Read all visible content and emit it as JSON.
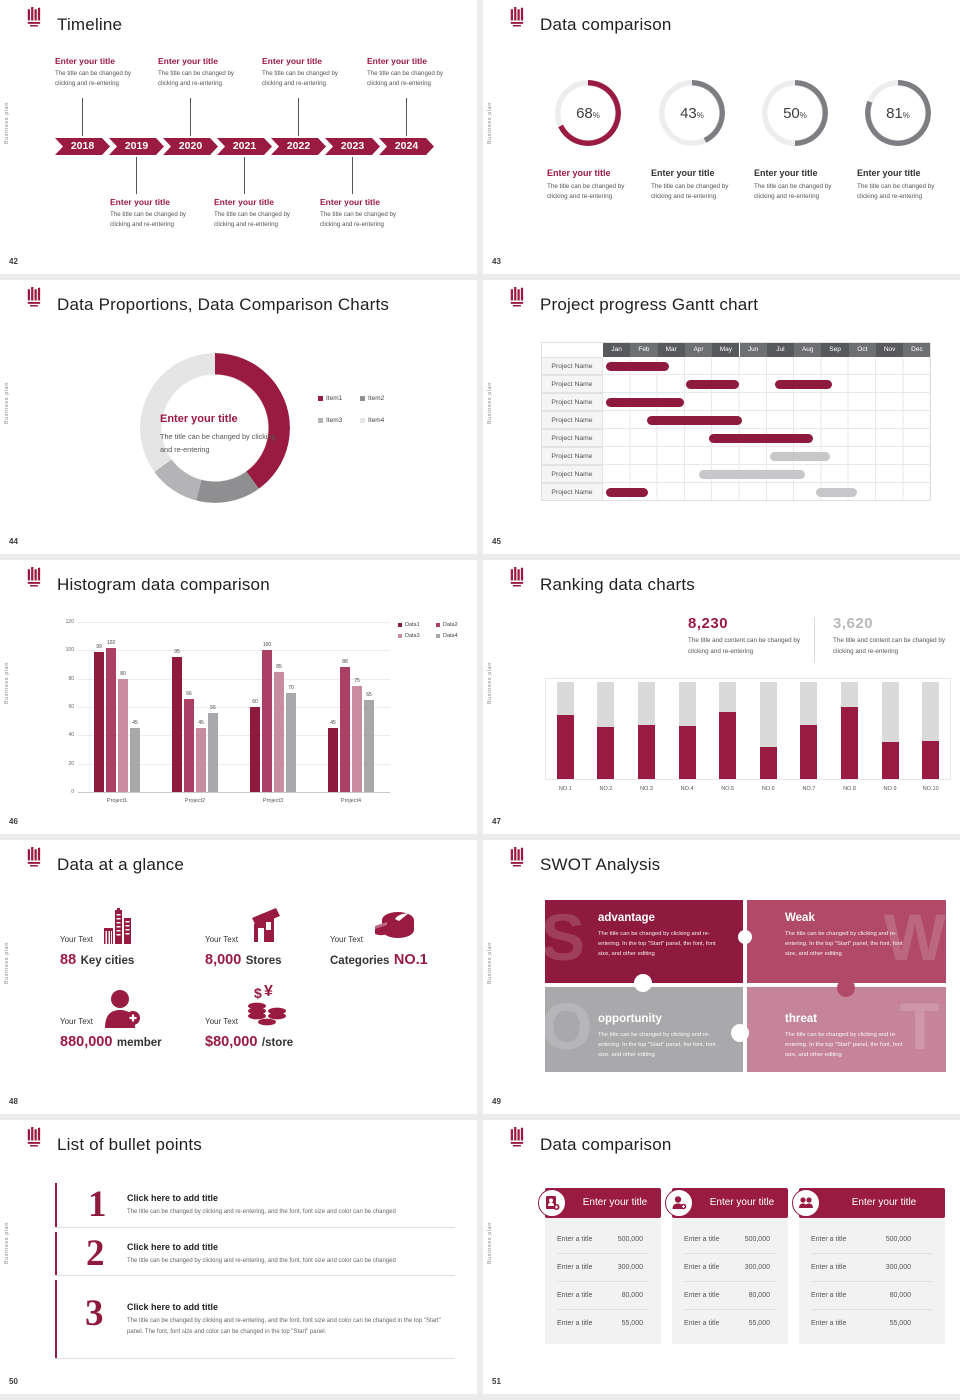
{
  "common": {
    "side_text": "Business plan",
    "logo": "university-emblem-icon"
  },
  "colors": {
    "primary": "#9a1b42",
    "primary_dark": "#8e1a3e",
    "gray_ring": "#7d7e81",
    "gantt_gray": "#c7c7c9",
    "track": "#dadadb"
  },
  "timeline": {
    "page_number": "42",
    "title": "Timeline",
    "years": [
      "2018",
      "2019",
      "2020",
      "2021",
      "2022",
      "2023",
      "2024"
    ],
    "entry_title": "Enter your title",
    "entry_desc": "The title can be changed by clicking and re-entering",
    "top_indices": [
      0,
      2,
      4,
      6
    ],
    "bottom_indices": [
      1,
      3,
      5
    ]
  },
  "rings": {
    "page_number": "43",
    "title": "Data comparison",
    "items": [
      {
        "title": "Enter your title",
        "desc": "The title can be changed by clicking and re-entering",
        "accent": true
      },
      {
        "title": "Enter your title",
        "desc": "The title can be changed by clicking and re-entering",
        "accent": false
      },
      {
        "title": "Enter your title",
        "desc": "The title can be changed by clicking and re-entering",
        "accent": false
      },
      {
        "title": "Enter your title",
        "desc": "The title can be changed by clicking and re-entering",
        "accent": false
      }
    ]
  },
  "donut": {
    "page_number": "44",
    "title": "Data Proportions, Data Comparison Charts",
    "center_title": "Enter your title",
    "center_desc": "The title can be changed by clicking and re-entering"
  },
  "gantt": {
    "page_number": "45",
    "title": "Project progress Gantt chart"
  },
  "histogram": {
    "page_number": "46",
    "title": "Histogram data comparison"
  },
  "ranking": {
    "page_number": "47",
    "title": "Ranking data charts",
    "stat1": {
      "value": "8,230",
      "desc": "The title and content can be changed by clicking and re-entering"
    },
    "stat2": {
      "value": "3,620",
      "desc": "The title and content can be changed by clicking and re-entering"
    }
  },
  "glance": {
    "page_number": "48",
    "title": "Data at a glance",
    "stats": [
      {
        "label": "Your Text",
        "a": "88",
        "b": "Key cities",
        "icon": "city-buildings-icon"
      },
      {
        "label": "Your Text",
        "a": "8,000",
        "b": "Stores",
        "icon": "store-icon"
      },
      {
        "label": "Your Text",
        "a": "Categories",
        "b": "NO.1",
        "icon": "pie-categories-icon"
      },
      {
        "label": "Your Text",
        "a": "880,000",
        "b": "member",
        "icon": "member-add-icon"
      },
      {
        "label": "Your Text",
        "a": "$80,000",
        "b": "/store",
        "icon": "coins-icon"
      }
    ]
  },
  "swot": {
    "page_number": "49",
    "title": "SWOT Analysis",
    "quads": [
      {
        "letter": "S",
        "heading": "advantage",
        "body": "The title can be changed by clicking and re-entering. In the top \"Start\" panel, the font, font size, and other editing",
        "color": "#8e1a3f"
      },
      {
        "letter": "W",
        "heading": "Weak",
        "body": "The title can be changed by clicking and re-entering. In the top \"Start\" panel, the font, font size, and other editing",
        "color": "#b04a68"
      },
      {
        "letter": "O",
        "heading": "opportunity",
        "body": "The title can be changed by clicking and re-entering. In the top \"Start\" panel, the font, font size, and other editing",
        "color": "#a9a9ab"
      },
      {
        "letter": "T",
        "heading": "threat",
        "body": "The title can be changed by clicking and re-entering. In the top \"Start\" panel, the font, font size, and other editing",
        "color": "#c6849b"
      }
    ]
  },
  "bullets": {
    "page_number": "50",
    "title": "List of bullet points",
    "items": [
      {
        "num": "1",
        "title": "Click here to add title",
        "desc": "The title can be changed by clicking and re-entering, and the font, font size and color can be changed"
      },
      {
        "num": "2",
        "title": "Click here to add title",
        "desc": "The title can be changed by clicking and re-entering, and the font, font size and color can be changed"
      },
      {
        "num": "3",
        "title": "Click here to add title",
        "desc": "The title can be changed by clicking and re-entering, and the font, font size and color can be changed in the top \"Start\" panel. The font, font size and color can be changed in the top \"Start\" panel."
      }
    ]
  },
  "tables": {
    "page_number": "51",
    "title": "Data comparison",
    "cards": [
      {
        "header": "Enter your title",
        "icon": "id-card-icon",
        "rows": [
          {
            "label": "Enter a title",
            "value": "500,000"
          },
          {
            "label": "Enter a title",
            "value": "300,000"
          },
          {
            "label": "Enter a title",
            "value": "80,000"
          },
          {
            "label": "Enter a title",
            "value": "55,000"
          }
        ]
      },
      {
        "header": "Enter your title",
        "icon": "person-add-icon",
        "rows": [
          {
            "label": "Enter a title",
            "value": "500,000"
          },
          {
            "label": "Enter a title",
            "value": "300,000"
          },
          {
            "label": "Enter a title",
            "value": "80,000"
          },
          {
            "label": "Enter a title",
            "value": "55,000"
          }
        ]
      },
      {
        "header": "Enter your title",
        "icon": "people-group-icon",
        "rows": [
          {
            "label": "Enter a title",
            "value": "500,000"
          },
          {
            "label": "Enter a title",
            "value": "300,000"
          },
          {
            "label": "Enter a title",
            "value": "80,000"
          },
          {
            "label": "Enter a title",
            "value": "55,000"
          }
        ]
      }
    ]
  },
  "chart_data": [
    {
      "id": "percent-rings",
      "type": "pie",
      "subtype": "progress-rings",
      "values": [
        68,
        43,
        50,
        81
      ],
      "unit": "%",
      "colors": [
        "#9a1b42",
        "#7d7e81",
        "#7d7e81",
        "#7d7e81"
      ],
      "track_color": "#ededef"
    },
    {
      "id": "proportion-donut",
      "type": "pie",
      "labels": [
        "Item1",
        "Item2",
        "Item3",
        "Item4"
      ],
      "values": [
        40,
        14,
        11,
        35
      ],
      "colors": [
        "#9a1b42",
        "#8f8f91",
        "#b4b4b6",
        "#e5e5e6"
      ],
      "legend_position": "right"
    },
    {
      "id": "gantt",
      "type": "table",
      "subtype": "gantt",
      "months": [
        "Jan",
        "Feb",
        "Mar",
        "Apr",
        "May",
        "Jun",
        "Jul",
        "Aug",
        "Sep",
        "Oct",
        "Nov",
        "Dec"
      ],
      "rows": [
        {
          "name": "Project Name",
          "bars": [
            {
              "s": 0.1,
              "e": 2.4,
              "c": "maroon"
            }
          ]
        },
        {
          "name": "Project Name",
          "bars": [
            {
              "s": 3.05,
              "e": 5.0,
              "c": "maroon"
            },
            {
              "s": 6.3,
              "e": 8.4,
              "c": "maroon"
            }
          ]
        },
        {
          "name": "Project Name",
          "bars": [
            {
              "s": 0.1,
              "e": 2.95,
              "c": "maroon"
            }
          ]
        },
        {
          "name": "Project Name",
          "bars": [
            {
              "s": 1.6,
              "e": 5.1,
              "c": "maroon"
            }
          ]
        },
        {
          "name": "Project Name",
          "bars": [
            {
              "s": 3.9,
              "e": 7.7,
              "c": "maroon"
            }
          ]
        },
        {
          "name": "Project Name",
          "bars": [
            {
              "s": 6.1,
              "e": 8.3,
              "c": "gray"
            }
          ]
        },
        {
          "name": "Project Name",
          "bars": [
            {
              "s": 3.5,
              "e": 7.4,
              "c": "gray"
            }
          ]
        },
        {
          "name": "Project Name",
          "bars": [
            {
              "s": 0.1,
              "e": 1.65,
              "c": "maroon"
            },
            {
              "s": 7.8,
              "e": 9.3,
              "c": "gray"
            }
          ]
        }
      ]
    },
    {
      "id": "histogram",
      "type": "bar",
      "categories": [
        "Project1",
        "Project2",
        "Project3",
        "Project4"
      ],
      "series": [
        {
          "name": "Data1",
          "color": "#8e1a3e",
          "values": [
            99,
            95,
            60,
            45
          ]
        },
        {
          "name": "Data2",
          "color": "#ab3f66",
          "values": [
            102,
            66,
            100,
            88
          ]
        },
        {
          "name": "Data3",
          "color": "#c98ba0",
          "values": [
            80,
            45,
            85,
            75
          ]
        },
        {
          "name": "Data4",
          "color": "#a8a8aa",
          "values": [
            45,
            56,
            70,
            65
          ]
        }
      ],
      "ylim": [
        0,
        120
      ],
      "yticks": [
        0,
        20,
        40,
        60,
        80,
        100,
        120
      ],
      "grid": true,
      "legend_position": "top-right"
    },
    {
      "id": "ranking",
      "type": "bar",
      "subtype": "fill-ratio",
      "categories": [
        "NO.1",
        "NO.2",
        "NO.3",
        "NO.4",
        "NO.5",
        "NO.6",
        "NO.7",
        "NO.8",
        "NO.9",
        "NO.10"
      ],
      "values": [
        66,
        54,
        56,
        55,
        69,
        33,
        56,
        74,
        38,
        39
      ],
      "ylim": [
        0,
        100
      ],
      "bar_color": "#9a1b42",
      "track_color": "#dadadb"
    }
  ]
}
